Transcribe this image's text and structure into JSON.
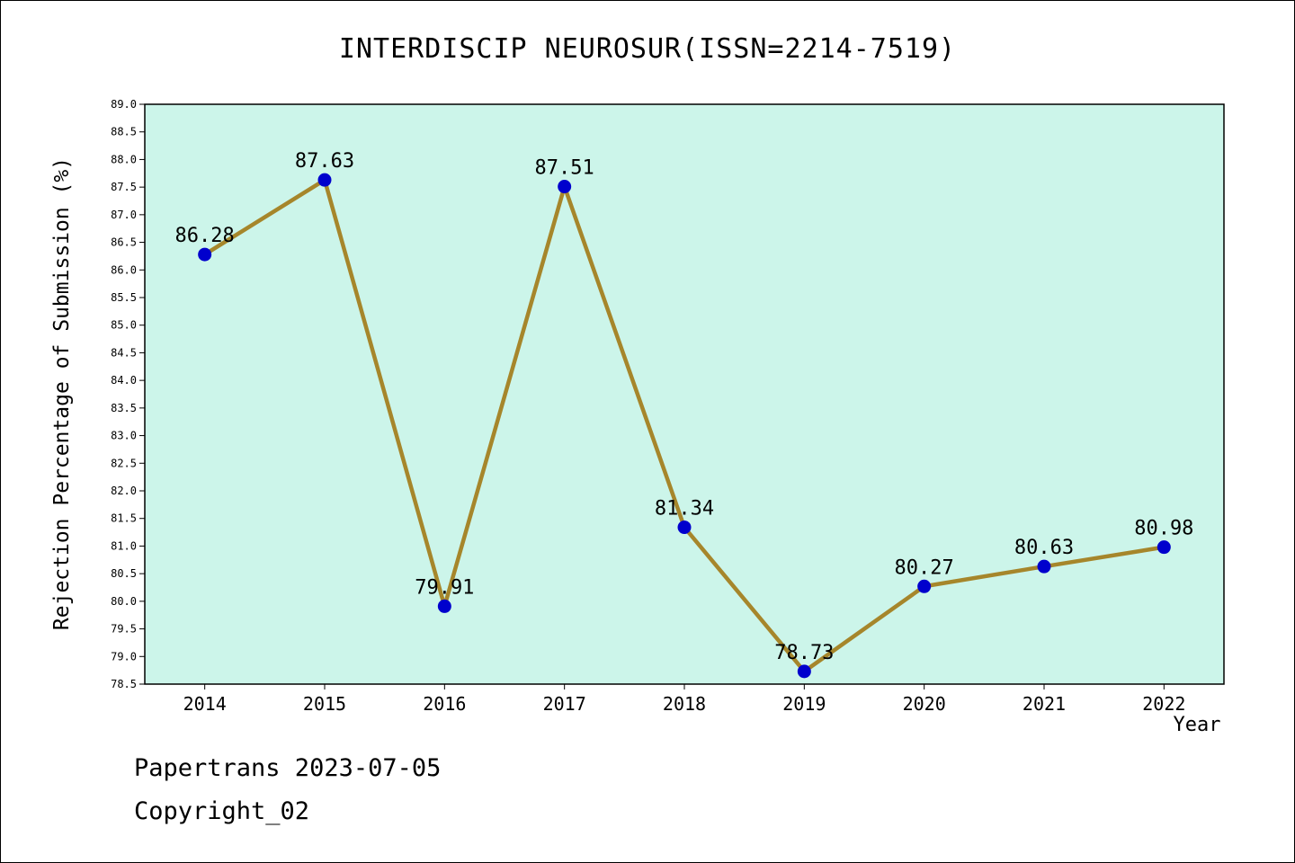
{
  "page": {
    "title": "INTERDISCIP NEUROSUR(ISSN=2214-7519)",
    "footer_line1": "Papertrans 2023-07-05",
    "footer_line2": "Copyright_02"
  },
  "chart_data": {
    "type": "line",
    "title": "INTERDISCIP NEUROSUR(ISSN=2214-7519)",
    "xlabel": "Year",
    "ylabel": "Rejection Percentage of Submission (%)",
    "categories": [
      "2014",
      "2015",
      "2016",
      "2017",
      "2018",
      "2019",
      "2020",
      "2021",
      "2022"
    ],
    "values": [
      86.28,
      87.63,
      79.91,
      87.51,
      81.34,
      78.73,
      80.27,
      80.63,
      80.98
    ],
    "ylim": [
      78.5,
      89.0
    ],
    "ytick_step": 0.5,
    "grid": false,
    "legend_position": "none",
    "colors": {
      "line": "#a6862b",
      "marker": "#0000cd",
      "plot_bg": "#ccf5ea",
      "axis": "#000000",
      "text": "#000000"
    }
  }
}
